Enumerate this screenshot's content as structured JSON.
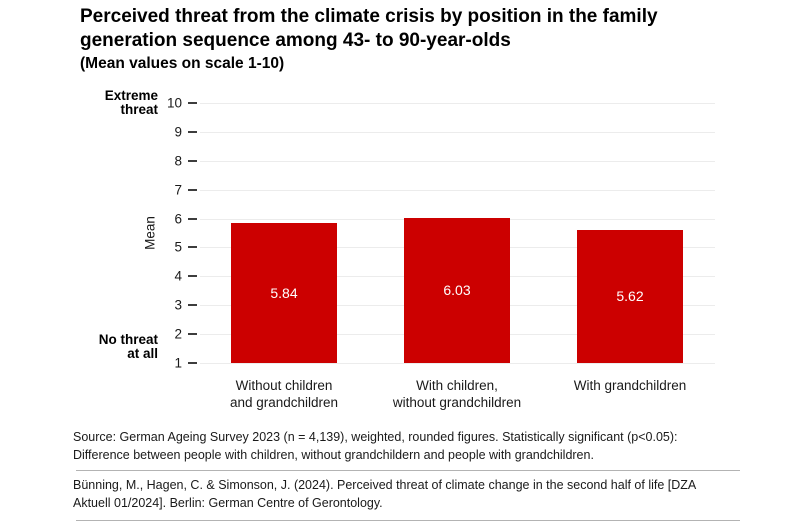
{
  "chart_data": {
    "type": "bar",
    "title": "Perceived threat from the climate crisis by position in the family generation sequence among 43- to 90-year-olds",
    "title_lines": [
      "Perceived threat from the climate crisis by position in the family",
      "generation sequence among 43- to 90-year-olds"
    ],
    "subtitle": "(Mean values on scale 1-10)",
    "categories": [
      "Without children\nand grandchildren",
      "With children,\nwithout grandchildren",
      "With grandchildren"
    ],
    "values": [
      5.84,
      6.03,
      5.62
    ],
    "value_labels": [
      "5.84",
      "6.03",
      "5.62"
    ],
    "ylabel": "Mean",
    "y_axis_top_annotation": "Extreme\nthreat",
    "y_axis_bottom_annotation": "No threat\nat all",
    "ylim": [
      1,
      10
    ],
    "yticks": [
      1,
      2,
      3,
      4,
      5,
      6,
      7,
      8,
      9,
      10
    ],
    "bar_baseline": 1,
    "grid": true,
    "legend": "none",
    "bar_color": "#cc0000",
    "value_label_color": "#ffffff"
  },
  "notes": {
    "source_line1": "Source: German Ageing Survey 2023 (n = 4,139), weighted, rounded figures. Statistically significant (p<0.05):",
    "source_line2": "Difference between people with children, without grandchildern and people with grandchildren.",
    "citation_line1": "Bünning, M., Hagen, C. & Simonson, J. (2024). Perceived threat of climate change in the second half of life [DZA",
    "citation_line2": "Aktuell 01/2024]. Berlin: German Centre of Gerontology."
  },
  "colors": {
    "bar": "#cc0000",
    "gridline": "#ececec",
    "tick": "#3d3d3d",
    "divider": "#b3b3b3",
    "text": "#1a1a1a"
  }
}
